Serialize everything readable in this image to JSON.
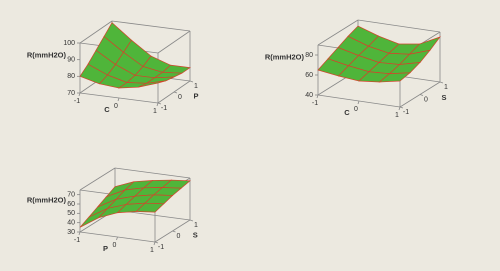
{
  "chart_data": [
    {
      "type": "surface",
      "zlabel": "R(mmH2O)",
      "xlabel": "C",
      "ylabel": "P",
      "x": [
        -1,
        -0.5,
        0,
        0.5,
        1
      ],
      "y": [
        -1,
        -0.5,
        0,
        0.5,
        1
      ],
      "z": [
        [
          80,
          77,
          76,
          78,
          82
        ],
        [
          84,
          79,
          76,
          77,
          80
        ],
        [
          89,
          82,
          77,
          77,
          79
        ],
        [
          94,
          86,
          79,
          77,
          78
        ],
        [
          99,
          90,
          82,
          78,
          78
        ]
      ],
      "xlim": [
        -1,
        1
      ],
      "ylim": [
        -1,
        1
      ],
      "zlim": [
        70,
        100
      ],
      "xticks": [
        -1,
        0,
        1
      ],
      "yticks": [
        -1,
        0,
        1
      ],
      "zticks": [
        70,
        80,
        90,
        100
      ],
      "color": "#4fb53a",
      "mesh_color": "#d2452b"
    },
    {
      "type": "surface",
      "zlabel": "R(mmH2O)",
      "xlabel": "C",
      "ylabel": "S",
      "x": [
        -1,
        -0.5,
        0,
        0.5,
        1
      ],
      "y": [
        -1,
        -0.5,
        0,
        0.5,
        1
      ],
      "z": [
        [
          65,
          62,
          60,
          62,
          66
        ],
        [
          70,
          66,
          63,
          64,
          68
        ],
        [
          75,
          70,
          66,
          67,
          72
        ],
        [
          80,
          73,
          69,
          71,
          78
        ],
        [
          84,
          77,
          72,
          75,
          85
        ]
      ],
      "xlim": [
        -1,
        1
      ],
      "ylim": [
        -1,
        1
      ],
      "zlim": [
        40,
        90
      ],
      "xticks": [
        -1,
        0,
        1
      ],
      "yticks": [
        -1,
        0,
        1
      ],
      "zticks": [
        40,
        60,
        80
      ],
      "color": "#4fb53a",
      "mesh_color": "#d2452b"
    },
    {
      "type": "surface",
      "zlabel": "R(mmH2O)",
      "xlabel": "P",
      "ylabel": "S",
      "x": [
        -1,
        -0.5,
        0,
        0.5,
        1
      ],
      "y": [
        -1,
        -0.5,
        0,
        0.5,
        1
      ],
      "z": [
        [
          35,
          48,
          56,
          60,
          62
        ],
        [
          40,
          52,
          59,
          63,
          65
        ],
        [
          45,
          56,
          62,
          66,
          68
        ],
        [
          50,
          60,
          65,
          68,
          70
        ],
        [
          55,
          63,
          67,
          70,
          72
        ]
      ],
      "xlim": [
        -1,
        1
      ],
      "ylim": [
        -1,
        1
      ],
      "zlim": [
        30,
        75
      ],
      "xticks": [
        -1,
        0,
        1
      ],
      "yticks": [
        -1,
        0,
        1
      ],
      "zticks": [
        30,
        40,
        50,
        60,
        70
      ],
      "color": "#4fb53a",
      "mesh_color": "#d2452b"
    }
  ]
}
